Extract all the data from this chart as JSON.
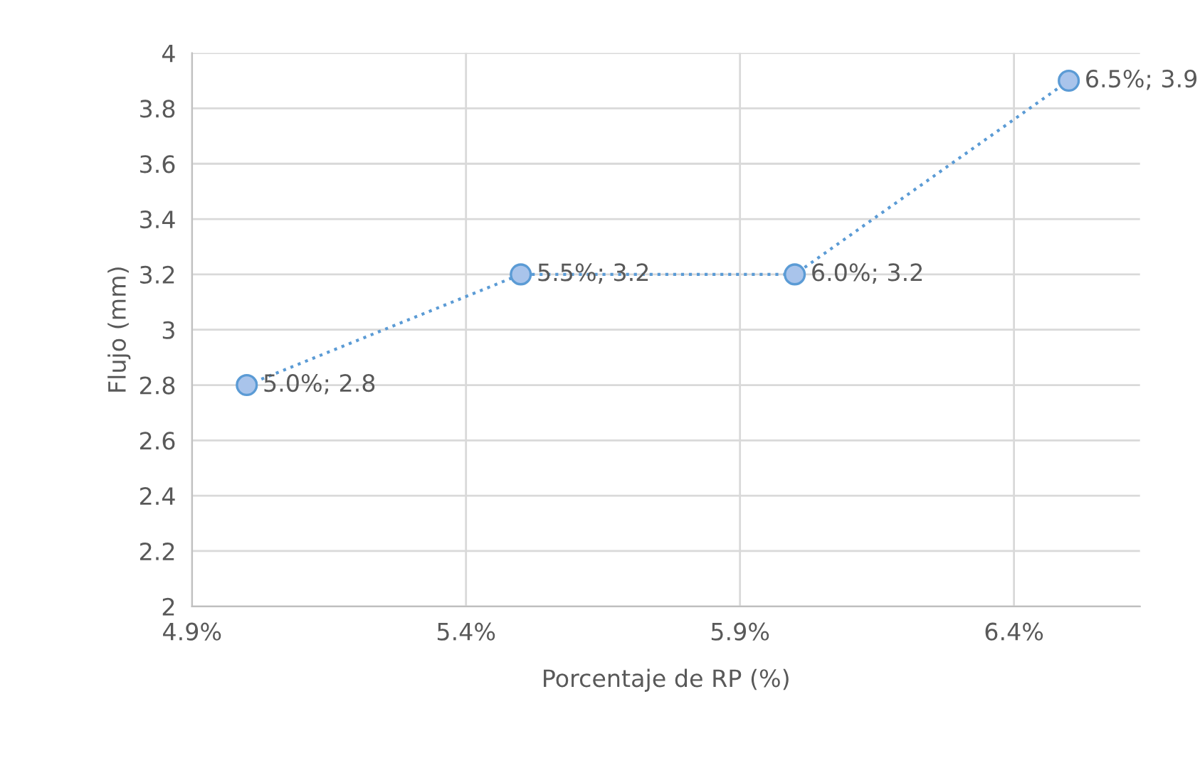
{
  "chart_data": {
    "type": "line",
    "xlabel": "Porcentaje de RP (%)",
    "ylabel": "Flujo (mm)",
    "x": [
      5.0,
      5.5,
      6.0,
      6.5
    ],
    "series": [
      {
        "color": "#5b9bd5",
        "values": [
          2.8,
          3.2,
          3.2,
          3.9
        ],
        "value_labels": [
          "5.0%; 2.8",
          "5.5%; 3.2",
          "6.0%; 3.2",
          "6.5%; 3.9"
        ]
      }
    ],
    "marker": "circle",
    "line_style": "dotted",
    "xlim": [
      4.9,
      6.63
    ],
    "xticks": [
      {
        "value": 4.9,
        "label": "4.9%"
      },
      {
        "value": 5.4,
        "label": "5.4%"
      },
      {
        "value": 5.9,
        "label": "5.9%"
      },
      {
        "value": 6.4,
        "label": "6.4%"
      }
    ],
    "ylim": [
      2,
      4
    ],
    "yticks": [
      2,
      2.2,
      2.4,
      2.6,
      2.8,
      3,
      3.2,
      3.4,
      3.6,
      3.8,
      4
    ],
    "grid": true,
    "legend": false
  }
}
